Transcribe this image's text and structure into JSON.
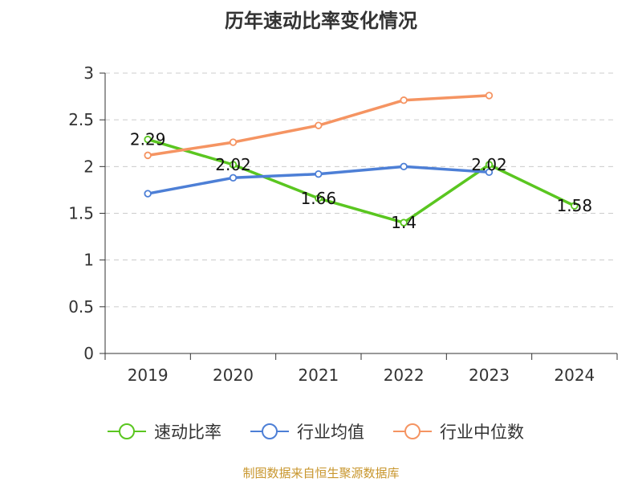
{
  "chart_data": {
    "type": "line",
    "title": "历年速动比率变化情况",
    "categories": [
      "2019",
      "2020",
      "2021",
      "2022",
      "2023",
      "2024"
    ],
    "ylim": [
      0,
      3
    ],
    "yticks": [
      "0",
      "0.5",
      "1",
      "1.5",
      "2",
      "2.5",
      "3"
    ],
    "grid": true,
    "legend_position": "bottom",
    "series": [
      {
        "name": "速动比率",
        "color": "#5ac620",
        "labeled": true,
        "values": [
          2.29,
          2.02,
          1.66,
          1.4,
          2.02,
          1.58
        ],
        "labels": [
          "2.29",
          "2.02",
          "1.66",
          "1.4",
          "2.02",
          "1.58"
        ]
      },
      {
        "name": "行业均值",
        "color": "#4d7fd6",
        "labeled": false,
        "values": [
          1.71,
          1.88,
          1.92,
          2.0,
          1.94,
          null
        ]
      },
      {
        "name": "行业中位数",
        "color": "#f59462",
        "labeled": false,
        "values": [
          2.12,
          2.26,
          2.44,
          2.71,
          2.76,
          null
        ]
      }
    ]
  },
  "source_note": "制图数据来自恒生聚源数据库"
}
